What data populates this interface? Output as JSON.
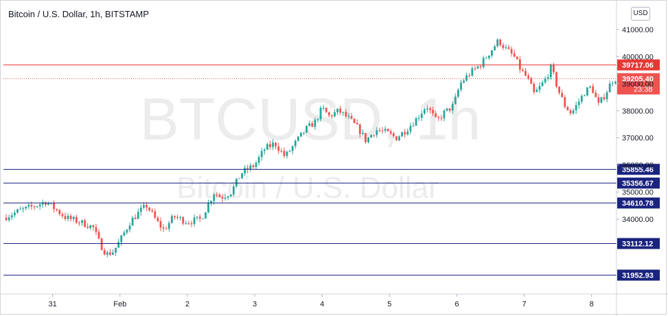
{
  "header": {
    "title": "Bitcoin / U.S. Dollar, 1h, BITSTAMP",
    "currency": "USD"
  },
  "watermark": {
    "symbol": "BTCUSD, 1h",
    "name": "Bitcoin / U.S. Dollar"
  },
  "colors": {
    "up": "#26a69a",
    "down": "#ef5350",
    "resistance": "#e53935",
    "support": "#1a237e",
    "last_price": "#ef5350"
  },
  "chart_data": {
    "type": "candlestick",
    "ylim": [
      30900,
      41500
    ],
    "y_ticks": [
      {
        "value": 41000,
        "label": "41000.00"
      },
      {
        "value": 40000,
        "label": "40000.00"
      },
      {
        "value": 39000,
        "label": "39000.00"
      },
      {
        "value": 38000,
        "label": "38000.00"
      },
      {
        "value": 37000,
        "label": "37000.00"
      },
      {
        "value": 36000,
        "label": "36000.00"
      },
      {
        "value": 35000,
        "label": "35000.00"
      },
      {
        "value": 34000,
        "label": "34000.00"
      }
    ],
    "x_ticks": [
      {
        "day": 0,
        "label": "31"
      },
      {
        "day": 1,
        "label": "Feb"
      },
      {
        "day": 2,
        "label": "2"
      },
      {
        "day": 3,
        "label": "3"
      },
      {
        "day": 4,
        "label": "4"
      },
      {
        "day": 5,
        "label": "5"
      },
      {
        "day": 6,
        "label": "6"
      },
      {
        "day": 7,
        "label": "7"
      },
      {
        "day": 8,
        "label": "8"
      }
    ],
    "x_range_days": [
      -0.73,
      8.37
    ],
    "horizontal_levels": [
      {
        "value": 39717.06,
        "label": "39717.06",
        "kind": "resistance"
      },
      {
        "value": 35855.46,
        "label": "35855.46",
        "kind": "support"
      },
      {
        "value": 35356.67,
        "label": "35356.67",
        "kind": "support"
      },
      {
        "value": 34610.78,
        "label": "34610.78",
        "kind": "support"
      },
      {
        "value": 33112.12,
        "label": "33112.12",
        "kind": "support"
      },
      {
        "value": 31952.93,
        "label": "31952.93",
        "kind": "support"
      }
    ],
    "last_price": {
      "value": 39205.4,
      "label": "39205.40",
      "countdown": "23:38"
    },
    "close_path": [
      [
        -0.73,
        34050
      ],
      [
        -0.5,
        34300
      ],
      [
        -0.25,
        34500
      ],
      [
        -0.1,
        34650
      ],
      [
        0.0,
        34450
      ],
      [
        0.2,
        34050
      ],
      [
        0.4,
        33900
      ],
      [
        0.6,
        33700
      ],
      [
        0.7,
        33100
      ],
      [
        0.8,
        32700
      ],
      [
        0.9,
        32800
      ],
      [
        1.0,
        33200
      ],
      [
        1.15,
        33900
      ],
      [
        1.3,
        34300
      ],
      [
        1.4,
        34500
      ],
      [
        1.55,
        33900
      ],
      [
        1.65,
        33600
      ],
      [
        1.8,
        34100
      ],
      [
        2.0,
        33900
      ],
      [
        2.2,
        34000
      ],
      [
        2.3,
        34500
      ],
      [
        2.4,
        35000
      ],
      [
        2.5,
        34800
      ],
      [
        2.65,
        35000
      ],
      [
        2.8,
        35700
      ],
      [
        3.0,
        36000
      ],
      [
        3.15,
        36600
      ],
      [
        3.3,
        36800
      ],
      [
        3.45,
        36300
      ],
      [
        3.6,
        36800
      ],
      [
        3.75,
        37300
      ],
      [
        3.9,
        37600
      ],
      [
        4.0,
        38100
      ],
      [
        4.1,
        37800
      ],
      [
        4.25,
        38000
      ],
      [
        4.4,
        37700
      ],
      [
        4.55,
        37300
      ],
      [
        4.65,
        36900
      ],
      [
        4.8,
        37300
      ],
      [
        4.95,
        37200
      ],
      [
        5.1,
        37000
      ],
      [
        5.25,
        37300
      ],
      [
        5.4,
        37700
      ],
      [
        5.55,
        38200
      ],
      [
        5.7,
        37600
      ],
      [
        5.8,
        37900
      ],
      [
        5.95,
        38200
      ],
      [
        6.05,
        39000
      ],
      [
        6.2,
        39400
      ],
      [
        6.35,
        39700
      ],
      [
        6.5,
        40200
      ],
      [
        6.62,
        40600
      ],
      [
        6.72,
        40300
      ],
      [
        6.85,
        40000
      ],
      [
        6.95,
        39500
      ],
      [
        7.05,
        39200
      ],
      [
        7.15,
        38600
      ],
      [
        7.3,
        39100
      ],
      [
        7.4,
        39600
      ],
      [
        7.5,
        38800
      ],
      [
        7.6,
        38200
      ],
      [
        7.7,
        37900
      ],
      [
        7.8,
        38300
      ],
      [
        7.9,
        38700
      ],
      [
        8.0,
        38900
      ],
      [
        8.1,
        38200
      ],
      [
        8.2,
        38600
      ],
      [
        8.3,
        39100
      ],
      [
        8.37,
        39205
      ]
    ]
  }
}
